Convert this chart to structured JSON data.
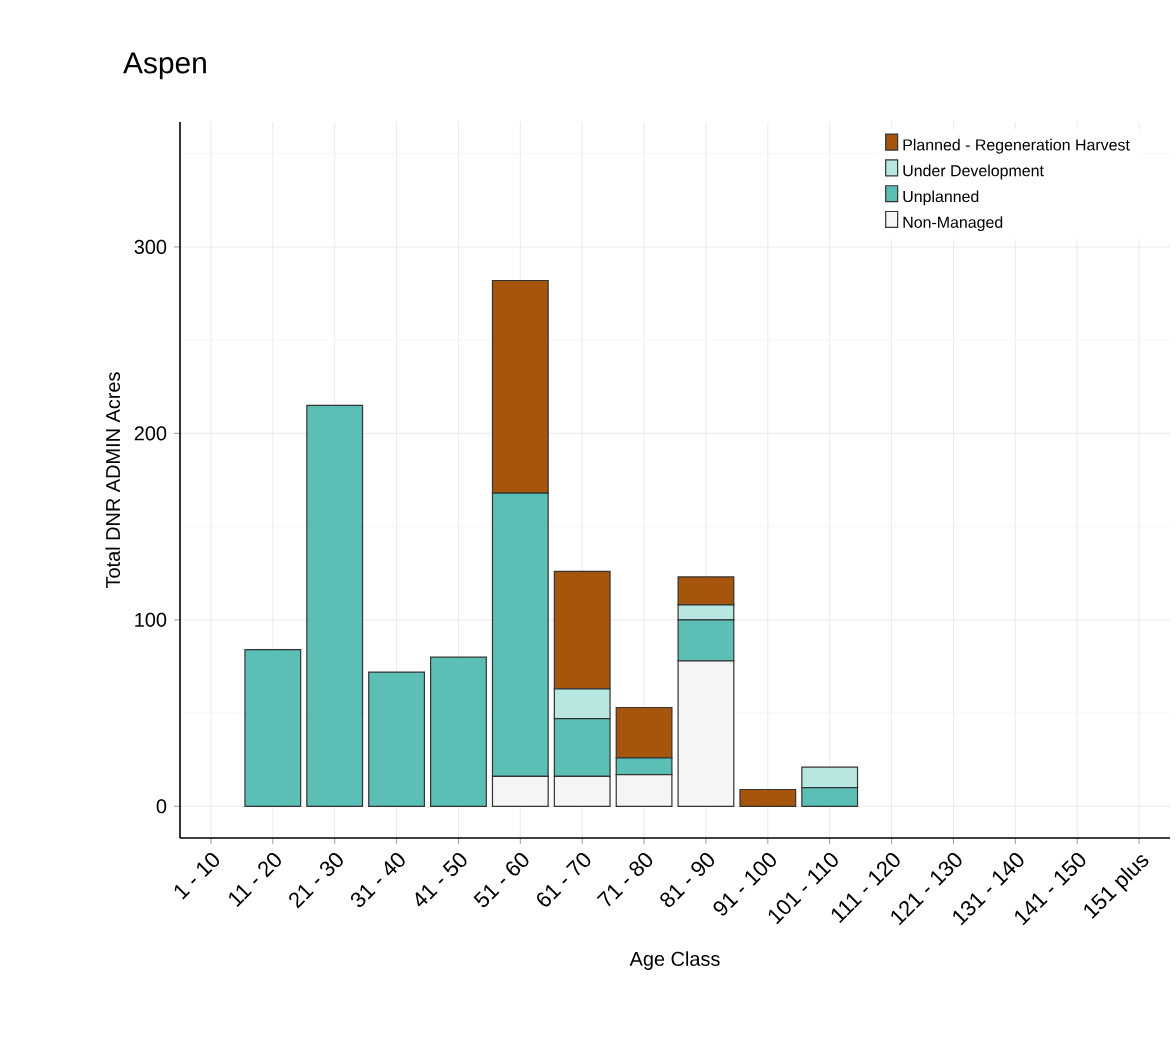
{
  "chart_data": {
    "type": "bar",
    "title": "Aspen",
    "xlabel": "Age Class",
    "ylabel": "Total DNR ADMIN Acres",
    "categories": [
      "1 - 10",
      "11 - 20",
      "21 - 30",
      "31 - 40",
      "41 - 50",
      "51 - 60",
      "61 - 70",
      "71 - 80",
      "81 - 90",
      "91 - 100",
      "101 - 110",
      "111 - 120",
      "121 - 130",
      "131 - 140",
      "141 - 150",
      "151 plus"
    ],
    "stacked": true,
    "series": [
      {
        "name": "Non-Managed",
        "color": "#f5f5f5",
        "values": [
          0,
          0,
          0,
          0,
          0,
          16,
          16,
          17,
          78,
          0,
          0,
          0,
          0,
          0,
          0,
          0
        ]
      },
      {
        "name": "Unplanned",
        "color": "#5bbfb5",
        "values": [
          0,
          84,
          215,
          72,
          80,
          152,
          31,
          9,
          22,
          0,
          10,
          0,
          0,
          0,
          0,
          0
        ]
      },
      {
        "name": "Under Development",
        "color": "#b8e6e0",
        "values": [
          0,
          0,
          0,
          0,
          0,
          0,
          16,
          0,
          8,
          0,
          11,
          0,
          0,
          0,
          0,
          0
        ]
      },
      {
        "name": "Planned - Regeneration Harvest",
        "color": "#a6550c",
        "values": [
          0,
          0,
          0,
          0,
          0,
          114,
          63,
          27,
          15,
          9,
          0,
          0,
          0,
          0,
          0,
          0
        ]
      }
    ],
    "ylim": [
      -17,
      367
    ],
    "yticks": [
      0,
      100,
      200,
      300
    ],
    "grid": true,
    "legend": "top right"
  }
}
